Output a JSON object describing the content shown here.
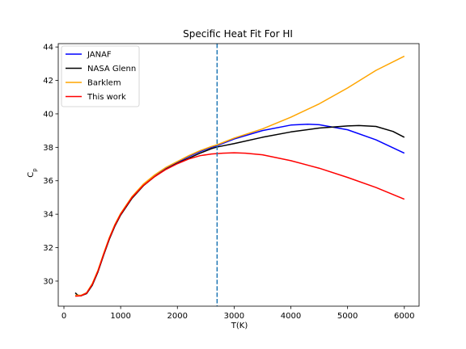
{
  "chart_data": {
    "type": "line",
    "title": "Specific Heat Fit For HI",
    "xlabel": "T(K)",
    "ylabel": "C_p",
    "xlim": [
      -100,
      6260
    ],
    "ylim": [
      28.5,
      44.2
    ],
    "xticks": [
      0,
      1000,
      2000,
      3000,
      4000,
      5000,
      6000
    ],
    "yticks": [
      30,
      32,
      34,
      36,
      38,
      40,
      42,
      44
    ],
    "legend_position": "top-left",
    "grid": false,
    "vline": {
      "x": 2700,
      "color": "#1f77b4",
      "style": "dashed"
    },
    "series": [
      {
        "name": "JANAF",
        "color": "#0000ff",
        "x": [
          200,
          300,
          400,
          500,
          600,
          700,
          800,
          900,
          1000,
          1200,
          1400,
          1600,
          1800,
          2000,
          2200,
          2400,
          2600,
          2700,
          3000,
          3500,
          4000,
          4300,
          4500,
          5000,
          5500,
          6000
        ],
        "y": [
          29.15,
          29.14,
          29.3,
          29.8,
          30.6,
          31.6,
          32.55,
          33.35,
          34.0,
          35.0,
          35.75,
          36.3,
          36.75,
          37.1,
          37.45,
          37.75,
          38.0,
          38.1,
          38.5,
          39.0,
          39.33,
          39.38,
          39.35,
          39.05,
          38.45,
          37.65
        ]
      },
      {
        "name": "NASA Glenn",
        "color": "#000000",
        "x": [
          200,
          230,
          260,
          300,
          400,
          500,
          600,
          700,
          800,
          900,
          1000,
          1200,
          1400,
          1600,
          1800,
          2000,
          2200,
          2400,
          2600,
          2700,
          3000,
          3500,
          4000,
          4500,
          5000,
          5200,
          5500,
          5800,
          6000
        ],
        "y": [
          29.3,
          29.2,
          29.13,
          29.12,
          29.25,
          29.75,
          30.55,
          31.55,
          32.5,
          33.3,
          33.95,
          34.95,
          35.7,
          36.25,
          36.7,
          37.05,
          37.35,
          37.65,
          37.92,
          38.02,
          38.22,
          38.6,
          38.92,
          39.15,
          39.28,
          39.3,
          39.25,
          38.95,
          38.6
        ]
      },
      {
        "name": "Barklem",
        "color": "#ffa500",
        "x": [
          200,
          300,
          400,
          500,
          600,
          700,
          800,
          900,
          1000,
          1200,
          1400,
          1600,
          1800,
          2000,
          2200,
          2400,
          2600,
          2700,
          3000,
          3500,
          4000,
          4500,
          5000,
          5500,
          6000
        ],
        "y": [
          29.15,
          29.15,
          29.3,
          29.85,
          30.65,
          31.65,
          32.6,
          33.4,
          34.05,
          35.05,
          35.8,
          36.35,
          36.8,
          37.15,
          37.5,
          37.8,
          38.05,
          38.15,
          38.55,
          39.1,
          39.8,
          40.6,
          41.55,
          42.6,
          43.45
        ]
      },
      {
        "name": "This work",
        "color": "#ff0000",
        "x": [
          200,
          300,
          400,
          500,
          600,
          700,
          800,
          900,
          1000,
          1200,
          1400,
          1600,
          1800,
          2000,
          2200,
          2400,
          2600,
          2800,
          3000,
          3200,
          3500,
          4000,
          4500,
          5000,
          5500,
          6000
        ],
        "y": [
          29.1,
          29.12,
          29.28,
          29.8,
          30.6,
          31.6,
          32.55,
          33.35,
          34.0,
          35.0,
          35.72,
          36.25,
          36.68,
          37.02,
          37.3,
          37.5,
          37.6,
          37.65,
          37.67,
          37.65,
          37.55,
          37.2,
          36.75,
          36.2,
          35.6,
          34.9
        ]
      }
    ]
  }
}
